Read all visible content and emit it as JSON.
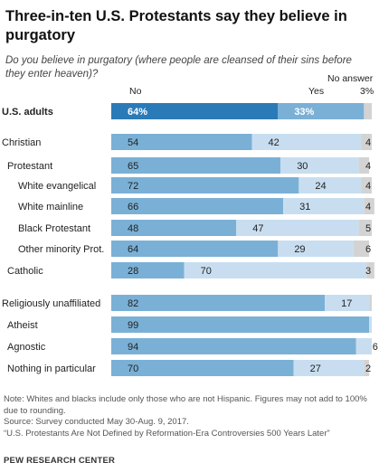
{
  "title": "Three-in-ten U.S. Protestants say they believe in purgatory",
  "subtitle": "Do you believe in purgatory (where people are cleansed of their sins before they enter heaven)?",
  "col_no": "No",
  "col_yes": "Yes",
  "col_na": "No answer",
  "na_first": "3%",
  "chart_data": {
    "type": "bar",
    "stacked": true,
    "orientation": "horizontal",
    "xlim": [
      0,
      100
    ],
    "series": [
      {
        "name": "No",
        "color": "#7ab0d6",
        "highlight_color": "#2b7ab8"
      },
      {
        "name": "Yes",
        "color": "#c8def0",
        "highlight_color": "#7ab0d6"
      },
      {
        "name": "No answer",
        "color": "#d3d3d3"
      }
    ],
    "rows": [
      {
        "label": "U.S. adults",
        "no": 64,
        "yes": 33,
        "na": 3,
        "no_label": "64%",
        "yes_label": "33%",
        "na_label": "",
        "bold": true,
        "highlight": true,
        "indent": 0
      },
      {
        "label": "Christian",
        "no": 54,
        "yes": 42,
        "na": 4,
        "no_label": "54",
        "yes_label": "42",
        "na_label": "4",
        "indent": 0
      },
      {
        "label": "Protestant",
        "no": 65,
        "yes": 30,
        "na": 4,
        "no_label": "65",
        "yes_label": "30",
        "na_label": "4",
        "indent": 1
      },
      {
        "label": "White evangelical",
        "no": 72,
        "yes": 24,
        "na": 4,
        "no_label": "72",
        "yes_label": "24",
        "na_label": "4",
        "indent": 2
      },
      {
        "label": "White mainline",
        "no": 66,
        "yes": 31,
        "na": 4,
        "no_label": "66",
        "yes_label": "31",
        "na_label": "4",
        "indent": 2
      },
      {
        "label": "Black Protestant",
        "no": 48,
        "yes": 47,
        "na": 5,
        "no_label": "48",
        "yes_label": "47",
        "na_label": "5",
        "indent": 2
      },
      {
        "label": "Other minority Prot.",
        "no": 64,
        "yes": 29,
        "na": 6,
        "no_label": "64",
        "yes_label": "29",
        "na_label": "6",
        "indent": 2
      },
      {
        "label": "Catholic",
        "no": 28,
        "yes": 70,
        "na": 3,
        "no_label": "28",
        "yes_label": "70",
        "na_label": "3",
        "indent": 1
      },
      {
        "label": "Religiously unaffiliated",
        "no": 82,
        "yes": 17,
        "na": 1,
        "no_label": "82",
        "yes_label": "17",
        "na_label": "",
        "indent": 0
      },
      {
        "label": "Atheist",
        "no": 99,
        "yes": 1,
        "na": 0,
        "no_label": "99",
        "yes_label": "",
        "na_label": "",
        "indent": 1
      },
      {
        "label": "Agnostic",
        "no": 94,
        "yes": 6,
        "na": 0,
        "no_label": "94",
        "yes_label": "6",
        "na_label": "",
        "indent": 1
      },
      {
        "label": "Nothing in particular",
        "no": 70,
        "yes": 27,
        "na": 2,
        "no_label": "70",
        "yes_label": "27",
        "na_label": "2",
        "indent": 1
      }
    ]
  },
  "note": "Note: Whites and blacks include only those who are not Hispanic. Figures may not add to 100% due to rounding.",
  "source": "Source: Survey conducted May 30-Aug. 9, 2017.",
  "source2": "“U.S. Protestants Are Not Defined by Reformation-Era Controversies 500 Years Later”",
  "brand": "PEW RESEARCH CENTER"
}
